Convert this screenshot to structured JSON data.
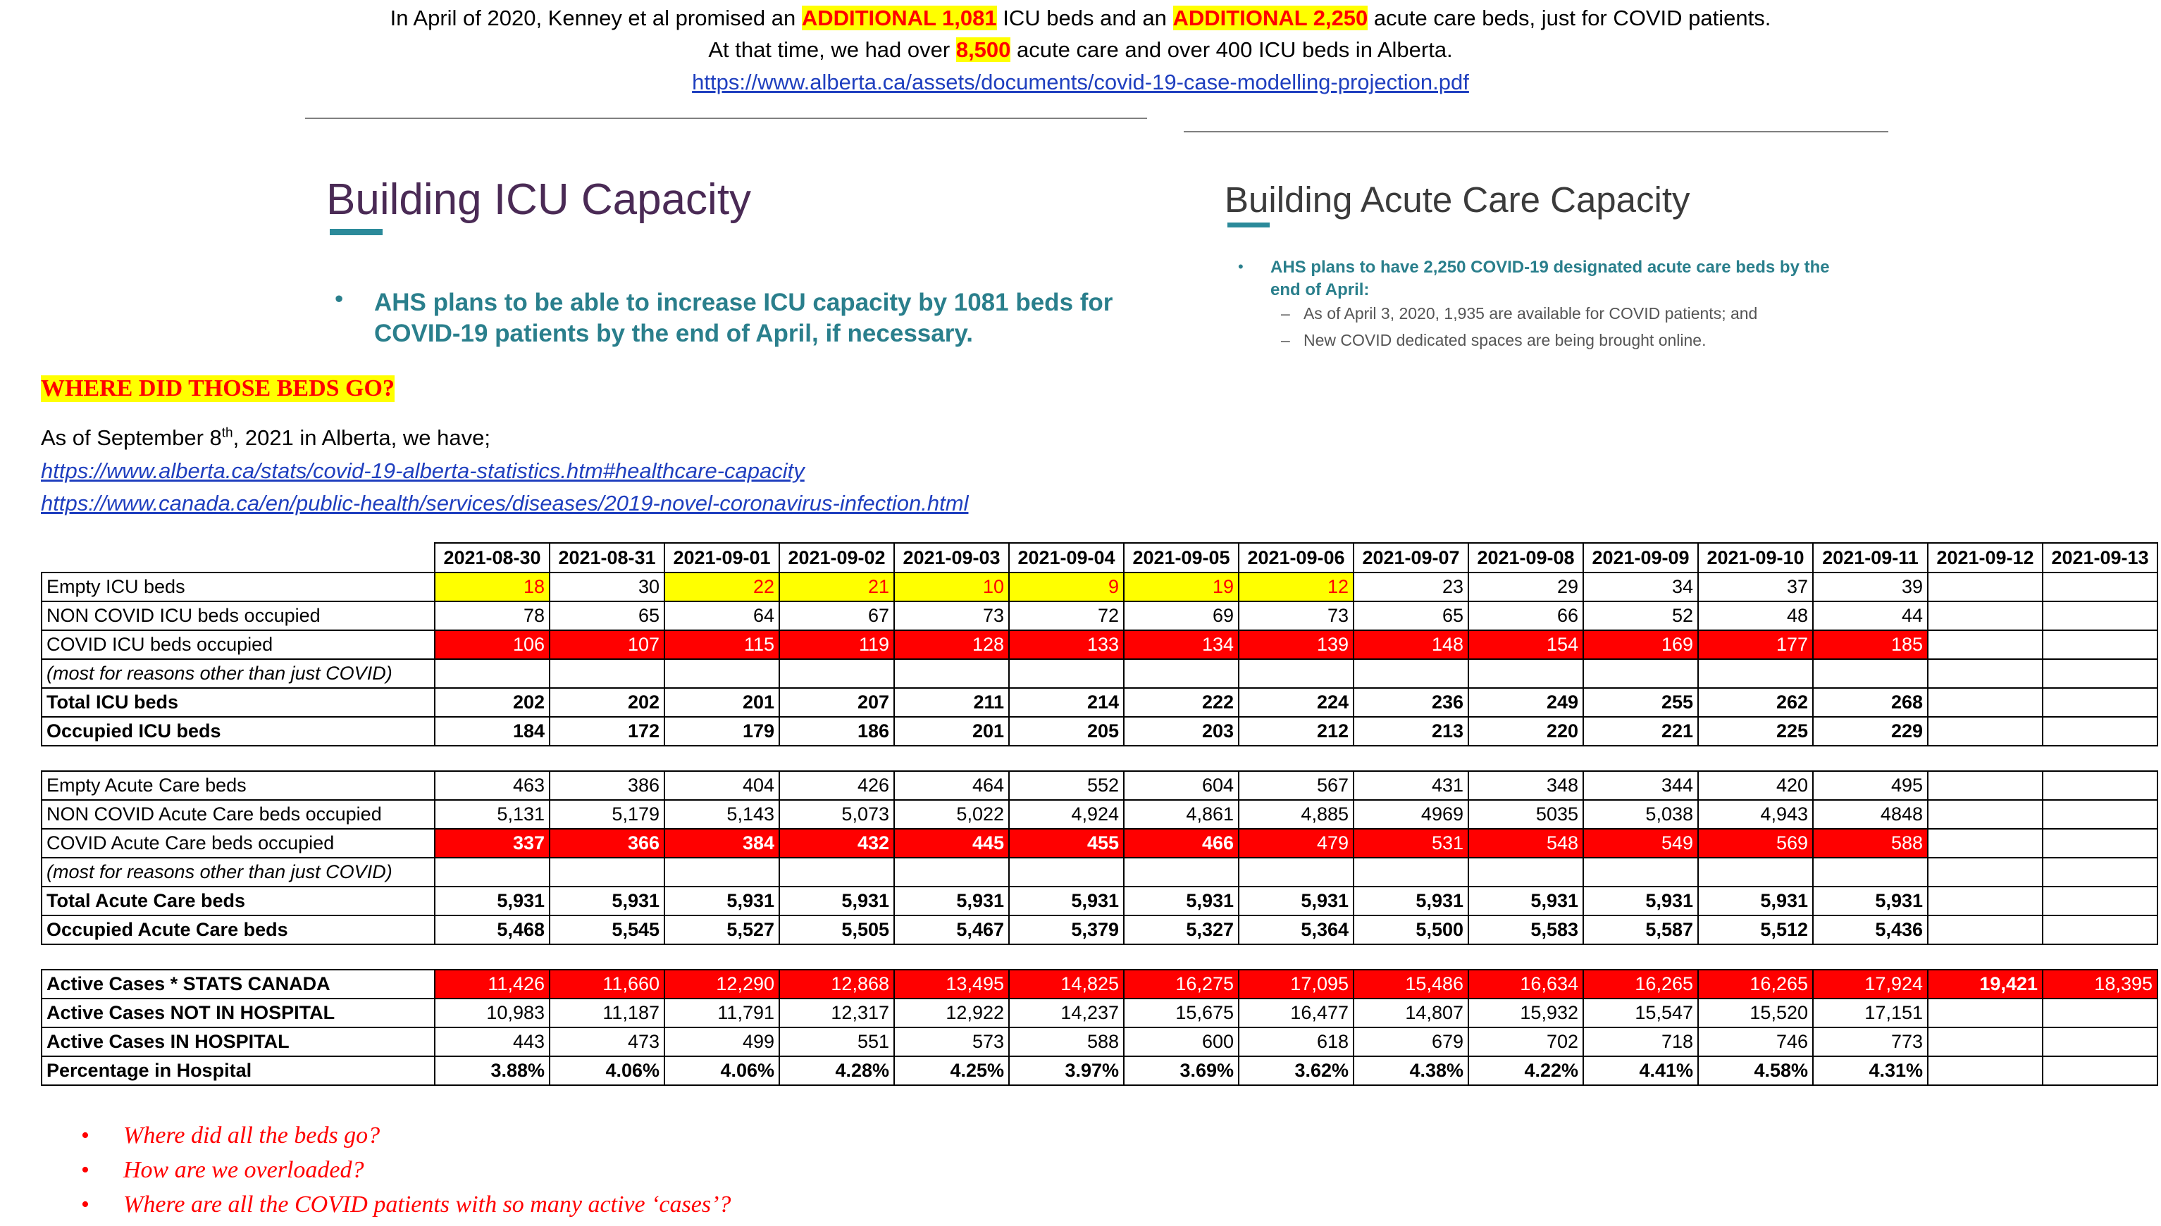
{
  "intro": {
    "line1": {
      "t1": "In April of 2020, Kenney et al promised an ",
      "h1": "ADDITIONAL 1,081",
      "t2": " ICU beds and an ",
      "h2": "ADDITIONAL 2,250",
      "t3": " acute care beds, just for COVID patients."
    },
    "line2": {
      "t1": "At that time, we had over ",
      "h1": "8,500",
      "t2": " acute care and over 400 ICU beds in Alberta."
    },
    "link": "https://www.alberta.ca/assets/documents/covid-19-case-modelling-projection.pdf"
  },
  "slide_icu": {
    "title": "Building ICU Capacity",
    "bullet_line1": "AHS plans to be able to increase ICU capacity by 1081 beds for",
    "bullet_line2": "COVID-19 patients by the end of April, if necessary."
  },
  "slide_acute": {
    "title": "Building Acute Care Capacity",
    "bullet_line1": "AHS plans to have 2,250 COVID-19 designated acute care beds by the",
    "bullet_line2": "end of April:",
    "sub1": "As of April 3, 2020, 1,935 are available for COVID patients; and",
    "sub2": "New COVID dedicated spaces are being brought online."
  },
  "where_heading": "WHERE DID THOSE BEDS GO?",
  "asof": {
    "pre": "As of September 8",
    "sup": "th",
    "post": ", 2021 in Alberta, we have;"
  },
  "links": [
    "https://www.alberta.ca/stats/covid-19-alberta-statistics.htm#healthcare-capacity",
    "https://www.canada.ca/en/public-health/services/diseases/2019-novel-coronavirus-infection.html"
  ],
  "colors": {
    "highlight_yellow": "#ffff00",
    "highlight_red": "#ff0000",
    "teal": "#2a7f8c",
    "link_blue": "#1f3fbf"
  },
  "table": {
    "dates": [
      "2021-08-30",
      "2021-08-31",
      "2021-09-01",
      "2021-09-02",
      "2021-09-03",
      "2021-09-04",
      "2021-09-05",
      "2021-09-06",
      "2021-09-07",
      "2021-09-08",
      "2021-09-09",
      "2021-09-10",
      "2021-09-11",
      "2021-09-12",
      "2021-09-13"
    ],
    "rows": [
      {
        "label": "Empty ICU beds",
        "values": [
          "18",
          "30",
          "22",
          "21",
          "10",
          "9",
          "19",
          "12",
          "23",
          "29",
          "34",
          "37",
          "39",
          "",
          ""
        ],
        "hl": [
          "y",
          "",
          "y",
          "y",
          "y",
          "y",
          "y",
          "y",
          "",
          "",
          "",
          "",
          "",
          "",
          ""
        ]
      },
      {
        "label": "NON COVID ICU beds occupied",
        "values": [
          "78",
          "65",
          "64",
          "67",
          "73",
          "72",
          "69",
          "73",
          "65",
          "66",
          "52",
          "48",
          "44",
          "",
          ""
        ]
      },
      {
        "label": "COVID ICU beds occupied",
        "values": [
          "106",
          "107",
          "115",
          "119",
          "128",
          "133",
          "134",
          "139",
          "148",
          "154",
          "169",
          "177",
          "185",
          "",
          ""
        ],
        "hl": [
          "r",
          "r",
          "r",
          "r",
          "r",
          "r",
          "r",
          "r",
          "r",
          "r",
          "r",
          "r",
          "r",
          "",
          ""
        ]
      },
      {
        "label": "(most for reasons other than just COVID)",
        "values": [
          "",
          "",
          "",
          "",
          "",
          "",
          "",
          "",
          "",
          "",
          "",
          "",
          "",
          "",
          ""
        ],
        "note": true
      },
      {
        "label": "Total ICU beds",
        "values": [
          "202",
          "202",
          "201",
          "207",
          "211",
          "214",
          "222",
          "224",
          "236",
          "249",
          "255",
          "262",
          "268",
          "",
          ""
        ],
        "bold": true
      },
      {
        "label": "Occupied ICU beds",
        "values": [
          "184",
          "172",
          "179",
          "186",
          "201",
          "205",
          "203",
          "212",
          "213",
          "220",
          "221",
          "225",
          "229",
          "",
          ""
        ],
        "bold": true
      },
      {
        "gap": true
      },
      {
        "label": "Empty Acute Care beds",
        "values": [
          "463",
          "386",
          "404",
          "426",
          "464",
          "552",
          "604",
          "567",
          "431",
          "348",
          "344",
          "420",
          "495",
          "",
          ""
        ]
      },
      {
        "label": "NON COVID Acute Care beds occupied",
        "values": [
          "5,131",
          "5,179",
          "5,143",
          "5,073",
          "5,022",
          "4,924",
          "4,861",
          "4,885",
          "4969",
          "5035",
          "5,038",
          "4,943",
          "4848",
          "",
          ""
        ]
      },
      {
        "label": "COVID Acute Care beds occupied",
        "values": [
          "337",
          "366",
          "384",
          "432",
          "445",
          "455",
          "466",
          "479",
          "531",
          "548",
          "549",
          "569",
          "588",
          "",
          ""
        ],
        "hl": [
          "rb",
          "rb",
          "rb",
          "rb",
          "rb",
          "rb",
          "rb",
          "r",
          "r",
          "r",
          "r",
          "r",
          "r",
          "",
          ""
        ]
      },
      {
        "label": "(most for reasons other than just COVID)",
        "values": [
          "",
          "",
          "",
          "",
          "",
          "",
          "",
          "",
          "",
          "",
          "",
          "",
          "",
          "",
          ""
        ],
        "note": true
      },
      {
        "label": "Total Acute Care beds",
        "values": [
          "5,931",
          "5,931",
          "5,931",
          "5,931",
          "5,931",
          "5,931",
          "5,931",
          "5,931",
          "5,931",
          "5,931",
          "5,931",
          "5,931",
          "5,931",
          "",
          ""
        ],
        "bold": true
      },
      {
        "label": "Occupied Acute Care beds",
        "values": [
          "5,468",
          "5,545",
          "5,527",
          "5,505",
          "5,467",
          "5,379",
          "5,327",
          "5,364",
          "5,500",
          "5,583",
          "5,587",
          "5,512",
          "5,436",
          "",
          ""
        ],
        "bold": true
      },
      {
        "gap": true
      },
      {
        "label": "Active Cases * STATS  CANADA",
        "values": [
          "11,426",
          "11,660",
          "12,290",
          "12,868",
          "13,495",
          "14,825",
          "16,275",
          "17,095",
          "15,486",
          "16,634",
          "16,265",
          "16,265",
          "17,924",
          "19,421",
          "18,395"
        ],
        "hl": [
          "r",
          "r",
          "r",
          "r",
          "r",
          "r",
          "r",
          "r",
          "r",
          "r",
          "r",
          "r",
          "r",
          "rb",
          "r"
        ],
        "boldlabel": true
      },
      {
        "label": "Active Cases NOT IN HOSPITAL",
        "values": [
          "10,983",
          "11,187",
          "11,791",
          "12,317",
          "12,922",
          "14,237",
          "15,675",
          "16,477",
          "14,807",
          "15,932",
          "15,547",
          "15,520",
          "17,151",
          "",
          ""
        ],
        "boldlabel": true
      },
      {
        "label": "Active Cases IN HOSPITAL",
        "values": [
          "443",
          "473",
          "499",
          "551",
          "573",
          "588",
          "600",
          "618",
          "679",
          "702",
          "718",
          "746",
          "773",
          "",
          ""
        ],
        "boldlabel": true
      },
      {
        "label": "Percentage in Hospital",
        "values": [
          "3.88%",
          "4.06%",
          "4.06%",
          "4.28%",
          "4.25%",
          "3.97%",
          "3.69%",
          "3.62%",
          "4.38%",
          "4.22%",
          "4.41%",
          "4.58%",
          "4.31%",
          "",
          ""
        ],
        "bold": true
      }
    ]
  },
  "questions": [
    "Where did all the beds go?",
    "How are we overloaded?",
    "Where are all the COVID patients with so many active ‘cases’?"
  ],
  "icons": {
    "bullet": "bullet-dot-icon",
    "dash": "dash-icon"
  }
}
